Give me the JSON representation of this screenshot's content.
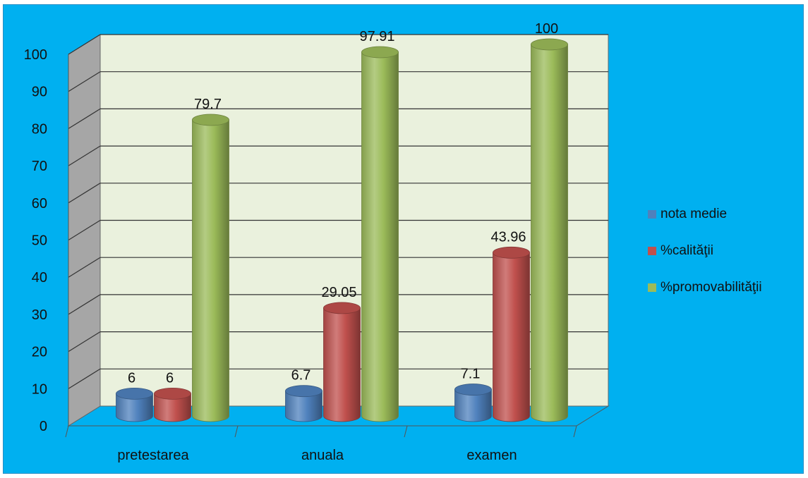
{
  "chart_data": {
    "type": "bar",
    "categories": [
      "pretestarea",
      "anuala",
      "examen"
    ],
    "series": [
      {
        "name": "nota medie",
        "values": [
          6,
          6.7,
          7.1
        ],
        "color": "#4f81bd"
      },
      {
        "name": "%calităţii",
        "values": [
          6,
          29.05,
          43.96
        ],
        "color": "#c0504d"
      },
      {
        "name": "%promovabilităţii",
        "values": [
          79.7,
          97.91,
          100
        ],
        "color": "#9bbb59"
      }
    ],
    "data_labels": [
      [
        "6",
        "6.7",
        "7.1"
      ],
      [
        "6",
        "29.05",
        "43.96"
      ],
      [
        "79.7",
        "97.91",
        "100"
      ]
    ],
    "yticks": [
      "0",
      "10",
      "20",
      "30",
      "40",
      "50",
      "60",
      "70",
      "80",
      "90",
      "100"
    ],
    "ylim": [
      0,
      100
    ],
    "grid": true,
    "legend_position": "right",
    "colors": {
      "background": "#00b0f0",
      "wall": "#eaf1dd",
      "side_wall": "#a6a6a6",
      "floor": "#00b0f0",
      "grid": "#333333"
    }
  }
}
